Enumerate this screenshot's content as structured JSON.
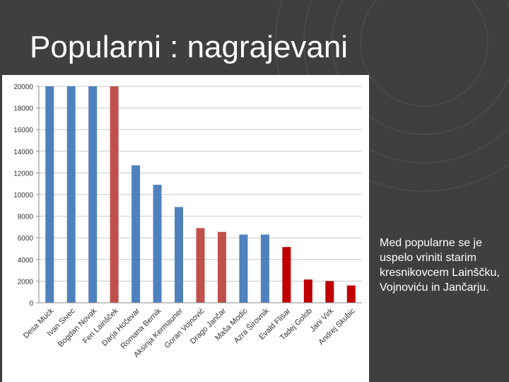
{
  "slide": {
    "title": "Popularni : nagrajevani",
    "note": "Med popularne se je uspelo vriniti starim kresnikovcem Lainščku, Vojnoviću in Jančarju."
  },
  "colors": {
    "background": "#3f3f3f",
    "blue": "#4f81bd",
    "red_light": "#c0504d",
    "red_dark": "#c00000"
  },
  "chart_data": {
    "type": "bar",
    "title": "",
    "xlabel": "",
    "ylabel": "",
    "ylim": [
      0,
      20000
    ],
    "yticks": [
      "0",
      "2000",
      "4000",
      "6000",
      "8000",
      "10000",
      "12000",
      "14000",
      "16000",
      "18000",
      "20000"
    ],
    "grid": true,
    "categories": [
      "Desa Muck",
      "Ivan Sivec",
      "Bogdan Novak",
      "Feri Lainšček",
      "Darja Hočevar",
      "Romana Bernik",
      "Aksinja Kermauner",
      "Goran Vojnović",
      "Drago Jančar",
      "Maša Modic",
      "Azra Širovnik",
      "Evald Flisar",
      "Tadej Golob",
      "Jani Virk",
      "Andrej Skubic"
    ],
    "values": [
      20000,
      20000,
      20000,
      20000,
      12700,
      10900,
      8850,
      6900,
      6550,
      6300,
      6300,
      5150,
      2150,
      2000,
      1600
    ],
    "bar_colors": [
      "#4f81bd",
      "#4f81bd",
      "#4f81bd",
      "#c0504d",
      "#4f81bd",
      "#4f81bd",
      "#4f81bd",
      "#c0504d",
      "#c0504d",
      "#4f81bd",
      "#4f81bd",
      "#c00000",
      "#c00000",
      "#c00000",
      "#c00000"
    ]
  }
}
